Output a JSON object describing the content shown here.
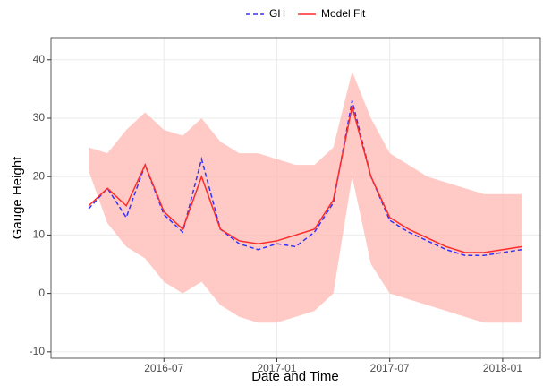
{
  "chart_data": {
    "type": "line",
    "x_label": "Date and Time",
    "y_label": "Gauge Height",
    "x": [
      "2016-03",
      "2016-04",
      "2016-05",
      "2016-06",
      "2016-07",
      "2016-08",
      "2016-09",
      "2016-10",
      "2016-11",
      "2016-12",
      "2017-01",
      "2017-02",
      "2017-03",
      "2017-04",
      "2017-05",
      "2017-06",
      "2017-07",
      "2017-08",
      "2017-09",
      "2017-10",
      "2017-11",
      "2017-12",
      "2018-01",
      "2018-02"
    ],
    "series": [
      {
        "name": "GH",
        "color": "#3333ff",
        "dash": true,
        "values": [
          14.5,
          18,
          13,
          22,
          13.5,
          10.5,
          23,
          11,
          8.5,
          7.5,
          8.5,
          8,
          10.5,
          15.5,
          33,
          20,
          12.5,
          10.5,
          9,
          7.5,
          6.5,
          6.5,
          7,
          7.5
        ]
      },
      {
        "name": "Model Fit",
        "color": "#ff2a2a",
        "dash": false,
        "values": [
          15,
          18,
          15,
          22,
          14,
          11,
          20,
          11,
          9,
          8.5,
          9,
          10,
          11,
          16,
          32,
          20,
          13,
          11,
          9.5,
          8,
          7,
          7,
          7.5,
          8
        ]
      }
    ],
    "band": {
      "color": "#ffb3ad",
      "upper": [
        25,
        24,
        28,
        31,
        28,
        27,
        30,
        26,
        24,
        24,
        23,
        22,
        22,
        25,
        38,
        30,
        24,
        22,
        20,
        19,
        18,
        17,
        17,
        17
      ],
      "lower": [
        21,
        12,
        8,
        6,
        2,
        0,
        2,
        -2,
        -4,
        -5,
        -5,
        -4,
        -3,
        0,
        20,
        5,
        0,
        -1,
        -2,
        -3,
        -4,
        -5,
        -5,
        -5
      ]
    },
    "xlim": [
      "2016-01",
      "2018-03"
    ],
    "xticks": [
      "2016-07",
      "2017-01",
      "2017-07",
      "2018-01"
    ],
    "ylim": [
      -11.1,
      43.8
    ],
    "yticks": [
      -10,
      0,
      10,
      20,
      30,
      40
    ],
    "grid": true
  }
}
